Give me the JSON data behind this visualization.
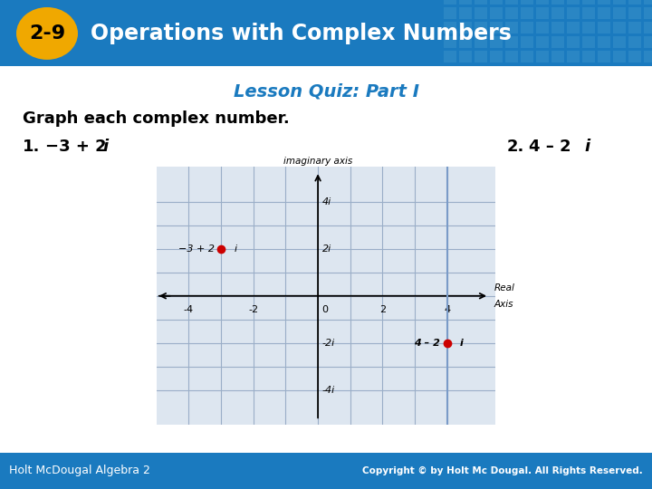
{
  "header_bg": "#1a7abf",
  "header_badge_bg": "#f0a800",
  "header_badge_text": "2-9",
  "header_title": "Operations with Complex Numbers",
  "subtitle": "Lesson Quiz: Part I",
  "subtitle_color": "#1a7abf",
  "instruction": "Graph each complex number.",
  "point1": [
    -3,
    2
  ],
  "point2": [
    4,
    -2
  ],
  "point_color": "#cc0000",
  "plot_bg": "#dde6f0",
  "grid_color": "#9aaec8",
  "page_bg": "#ffffff",
  "footer_bg": "#1a7abf",
  "footer_text": "Holt McDougal Algebra 2",
  "footer_copyright": "Copyright © by Holt Mc Dougal. All Rights Reserved.",
  "tile_color": "#4a9ecf"
}
